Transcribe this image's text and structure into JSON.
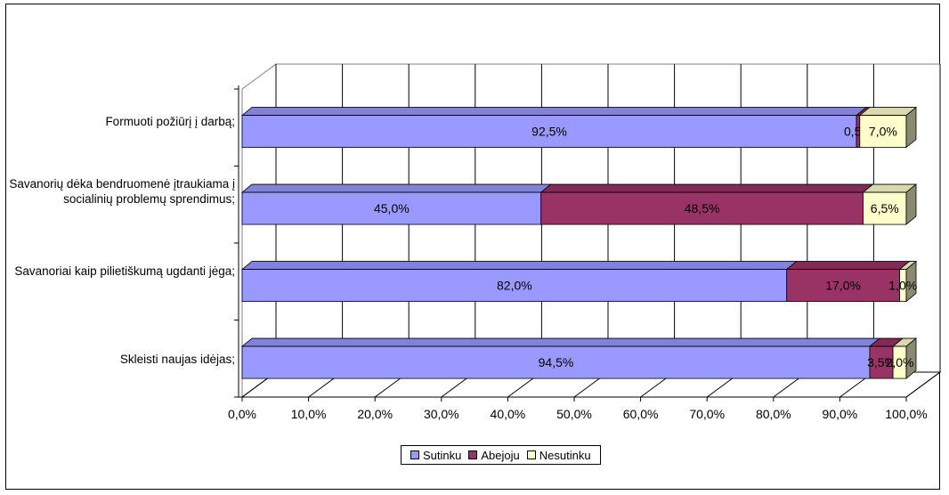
{
  "chart_data": {
    "type": "bar",
    "orientation": "horizontal",
    "stacked": true,
    "three_d": true,
    "categories": [
      "Formuoti požiūrį į darbą;",
      "Savanorių dėka bendruomenė įtraukiama į socialinių problemų sprendimus;",
      "Savanoriai kaip pilietiškumą ugdanti jėga;",
      "Skleisti naujas idėjas;"
    ],
    "series": [
      {
        "name": "Sutinku",
        "values": [
          92.5,
          45.0,
          82.0,
          94.5
        ],
        "labels": [
          "92,5%",
          "45,0%",
          "82,0%",
          "94,5%"
        ],
        "color": "#9999FF"
      },
      {
        "name": "Abejoju",
        "values": [
          0.5,
          48.5,
          17.0,
          3.5
        ],
        "labels": [
          "0,5%",
          "48,5%",
          "17,0%",
          "3,5%"
        ],
        "color": "#993366"
      },
      {
        "name": "Nesutinku",
        "values": [
          7.0,
          6.5,
          1.0,
          2.0
        ],
        "labels": [
          "7,0%",
          "6,5%",
          "1,0%",
          "2,0%"
        ],
        "color": "#FFFFCC"
      }
    ],
    "xlim": [
      0,
      100
    ],
    "x_ticks": [
      "0,0%",
      "10,0%",
      "20,0%",
      "30,0%",
      "40,0%",
      "50,0%",
      "60,0%",
      "70,0%",
      "80,0%",
      "90,0%",
      "100,0%"
    ],
    "grid": true,
    "legend_position": "bottom"
  }
}
